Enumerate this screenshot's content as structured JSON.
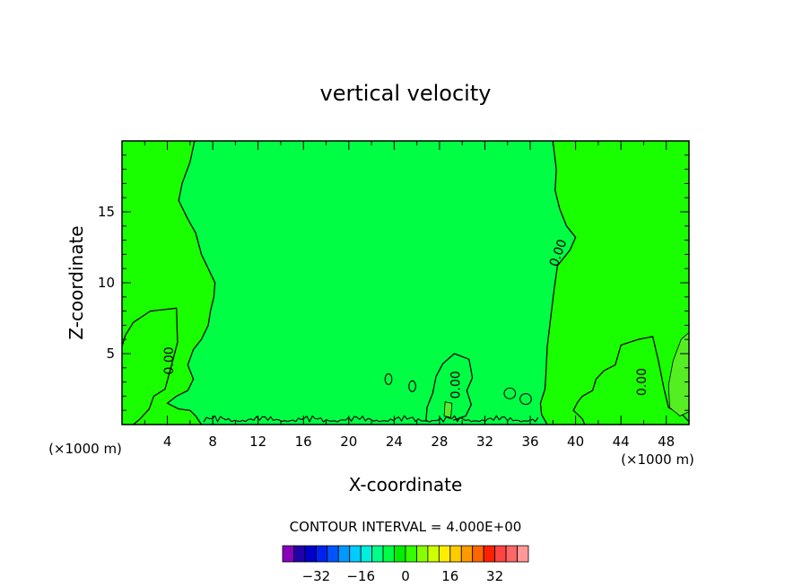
{
  "chart_data": {
    "type": "heatmap",
    "title": "vertical velocity",
    "xlabel": "X-coordinate",
    "ylabel": "Z-coordinate",
    "x_unit_left": "(×1000 m)",
    "x_unit_right": "(×1000 m)",
    "xlim": [
      0,
      50
    ],
    "ylim": [
      0,
      20
    ],
    "x_ticks": [
      4,
      8,
      12,
      16,
      20,
      24,
      28,
      32,
      36,
      40,
      44,
      48
    ],
    "y_ticks": [
      5,
      10,
      15
    ],
    "background_color": "#1aff00",
    "inner_region_color": "#00ff44",
    "weak_positive_color": "#55ee22",
    "contour_labels": [
      {
        "text": "0.00",
        "x": 4.5,
        "y": 4.5,
        "rotate": -90
      },
      {
        "text": "0.00",
        "x": 29.8,
        "y": 2.8,
        "rotate": -90
      },
      {
        "text": "0.00",
        "x": 38.8,
        "y": 12.0,
        "rotate": -70
      },
      {
        "text": "0.00",
        "x": 46.2,
        "y": 3.0,
        "rotate": -90
      }
    ],
    "contour_interval_label": "CONTOUR INTERVAL = 4.000E+00",
    "colorbar": {
      "colors": [
        "#8800bb",
        "#2200aa",
        "#0000cc",
        "#0022ee",
        "#0055ff",
        "#0099ff",
        "#00ccff",
        "#00eedd",
        "#00ff88",
        "#00ff44",
        "#00ee00",
        "#33ff00",
        "#88ff00",
        "#ccff00",
        "#ffee00",
        "#ffcc00",
        "#ff9900",
        "#ff6600",
        "#ff2200",
        "#ff4444",
        "#ff6666",
        "#ff9999"
      ],
      "range": [
        -44,
        44
      ],
      "tick_values": [
        -32,
        -16,
        0,
        16,
        32
      ],
      "tick_labels": [
        "−32",
        "−16",
        "0",
        "16",
        "32"
      ]
    }
  }
}
